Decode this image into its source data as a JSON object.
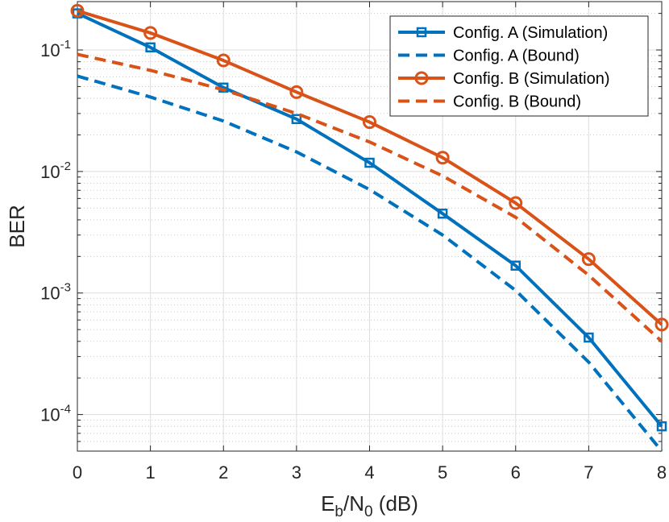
{
  "chart_data": {
    "type": "line",
    "title": "",
    "xlabel": {
      "base": "E",
      "sub1": "b",
      "mid": "/N",
      "sub2": "0",
      "suffix": " (dB)"
    },
    "ylabel": "BER",
    "xlim": [
      0,
      8
    ],
    "ylim": [
      5e-05,
      0.25
    ],
    "yscale": "log",
    "grid": true,
    "minor_grid": true,
    "legend_position": "top-right",
    "x_ticks": [
      0,
      1,
      2,
      3,
      4,
      5,
      6,
      7,
      8
    ],
    "y_ticks": [
      {
        "value": 0.1,
        "base": "10",
        "exp": "-1"
      },
      {
        "value": 0.01,
        "base": "10",
        "exp": "-2"
      },
      {
        "value": 0.001,
        "base": "10",
        "exp": "-3"
      },
      {
        "value": 0.0001,
        "base": "10",
        "exp": "-4"
      }
    ],
    "series": [
      {
        "name": "Config. A (Simulation)",
        "color": "#0072BD",
        "line": "solid",
        "marker": "square",
        "x": [
          0,
          1,
          2,
          3,
          4,
          5,
          6,
          7,
          8
        ],
        "values": [
          0.2,
          0.105,
          0.049,
          0.027,
          0.0118,
          0.0045,
          0.00168,
          0.00043,
          8e-05
        ]
      },
      {
        "name": "Config. A (Bound)",
        "color": "#0072BD",
        "line": "dashed",
        "marker": "none",
        "x": [
          0,
          1,
          2,
          3,
          4,
          5,
          6,
          7,
          8
        ],
        "values": [
          0.061,
          0.041,
          0.026,
          0.0145,
          0.0071,
          0.003,
          0.00105,
          0.00027,
          5e-05
        ]
      },
      {
        "name": "Config. B (Simulation)",
        "color": "#D95319",
        "line": "solid",
        "marker": "circle",
        "x": [
          0,
          1,
          2,
          3,
          4,
          5,
          6,
          7,
          8
        ],
        "values": [
          0.21,
          0.138,
          0.082,
          0.045,
          0.0255,
          0.013,
          0.0055,
          0.0019,
          0.00055
        ]
      },
      {
        "name": "Config. B (Bound)",
        "color": "#D95319",
        "line": "dashed",
        "marker": "none",
        "x": [
          0,
          1,
          2,
          3,
          4,
          5,
          6,
          7,
          8
        ],
        "values": [
          0.092,
          0.068,
          0.047,
          0.03,
          0.0175,
          0.0092,
          0.0042,
          0.0014,
          0.0004
        ]
      }
    ]
  }
}
